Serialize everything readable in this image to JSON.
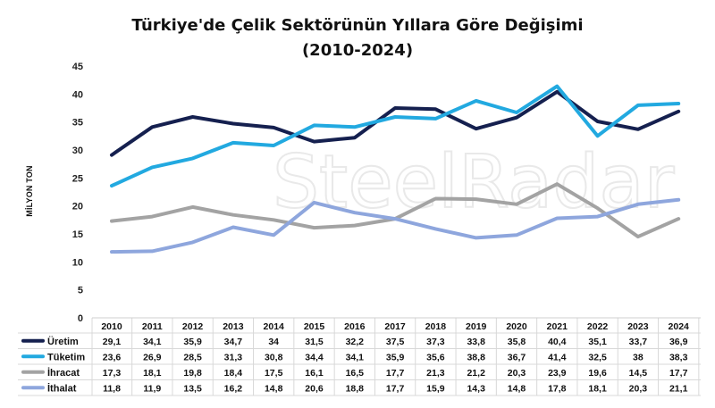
{
  "chart_data": {
    "type": "line",
    "title": "Türkiye'de Çelik Sektörünün Yıllara Göre Değişimi",
    "subtitle": "(2010-2024)",
    "ylabel": "MİLYON TON",
    "xlabel": "",
    "ylim": [
      0,
      45
    ],
    "yticks": [
      0,
      5,
      10,
      15,
      20,
      25,
      30,
      35,
      40,
      45
    ],
    "grid": false,
    "legend": "data-table-left",
    "watermark": "SteelRadar",
    "x": [
      "2010",
      "2011",
      "2012",
      "2013",
      "2014",
      "2015",
      "2016",
      "2017",
      "2018",
      "2019",
      "2020",
      "2021",
      "2022",
      "2023",
      "2024"
    ],
    "series": [
      {
        "name": "Üretim",
        "color": "#15204f",
        "values": [
          29.1,
          34.1,
          35.9,
          34.7,
          34,
          31.5,
          32.2,
          37.5,
          37.3,
          33.8,
          35.8,
          40.4,
          35.1,
          33.7,
          36.9
        ],
        "labels": [
          "29,1",
          "34,1",
          "35,9",
          "34,7",
          "34",
          "31,5",
          "32,2",
          "37,5",
          "37,3",
          "33,8",
          "35,8",
          "40,4",
          "35,1",
          "33,7",
          "36,9"
        ]
      },
      {
        "name": "Tüketim",
        "color": "#22a9e0",
        "values": [
          23.6,
          26.9,
          28.5,
          31.3,
          30.8,
          34.4,
          34.1,
          35.9,
          35.6,
          38.8,
          36.7,
          41.4,
          32.5,
          38,
          38.3
        ],
        "labels": [
          "23,6",
          "26,9",
          "28,5",
          "31,3",
          "30,8",
          "34,4",
          "34,1",
          "35,9",
          "35,6",
          "38,8",
          "36,7",
          "41,4",
          "32,5",
          "38",
          "38,3"
        ]
      },
      {
        "name": "İhracat",
        "color": "#a3a3a3",
        "values": [
          17.3,
          18.1,
          19.8,
          18.4,
          17.5,
          16.1,
          16.5,
          17.7,
          21.3,
          21.2,
          20.3,
          23.9,
          19.6,
          14.5,
          17.7
        ],
        "labels": [
          "17,3",
          "18,1",
          "19,8",
          "18,4",
          "17,5",
          "16,1",
          "16,5",
          "17,7",
          "21,3",
          "21,2",
          "20,3",
          "23,9",
          "19,6",
          "14,5",
          "17,7"
        ]
      },
      {
        "name": "İthalat",
        "color": "#8ea6dd",
        "values": [
          11.8,
          11.9,
          13.5,
          16.2,
          14.8,
          20.6,
          18.8,
          17.7,
          15.9,
          14.3,
          14.8,
          17.8,
          18.1,
          20.3,
          21.1
        ],
        "labels": [
          "11,8",
          "11,9",
          "13,5",
          "16,2",
          "14,8",
          "20,6",
          "18,8",
          "17,7",
          "15,9",
          "14,3",
          "14,8",
          "17,8",
          "18,1",
          "20,3",
          "21,1"
        ]
      }
    ]
  }
}
